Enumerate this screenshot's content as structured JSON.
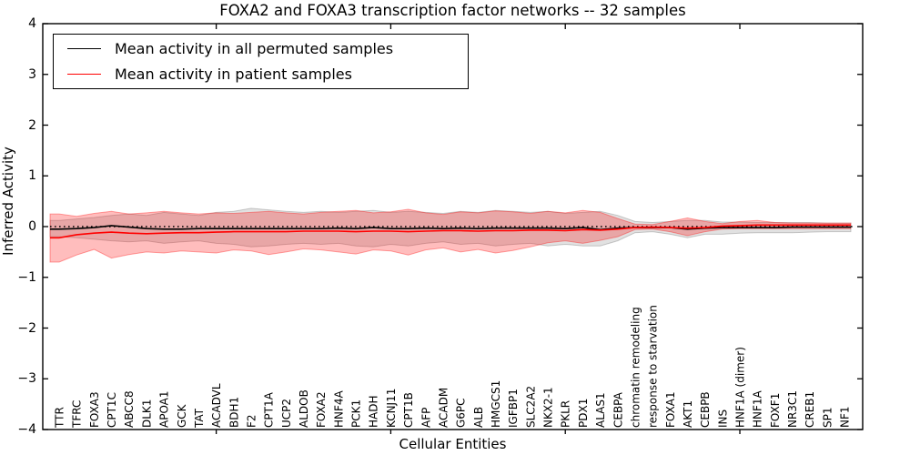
{
  "figure": {
    "title": "FOXA2 and FOXA3 transcription factor networks -- 32 samples"
  },
  "legend": {
    "items": [
      {
        "label": "Mean activity in all permuted samples",
        "color": "#000000"
      },
      {
        "label": "Mean activity in patient samples",
        "color": "#ff0000"
      }
    ]
  },
  "axes": {
    "xlabel": "Cellular Entities",
    "ylabel": "Inferred Activity",
    "y_ticks": [
      4,
      3,
      2,
      1,
      0,
      -1,
      -2,
      -3,
      -4
    ],
    "x_major_ticks": [
      10,
      20,
      30,
      40
    ],
    "ylim": [
      -4,
      4
    ]
  },
  "chart_data": {
    "type": "line",
    "title": "FOXA2 and FOXA3 transcription factor networks -- 32 samples",
    "xlabel": "Cellular Entities",
    "ylabel": "Inferred Activity",
    "ylim": [
      -4,
      4
    ],
    "grid": false,
    "legend_position": "upper left",
    "zero_reference_line": 0,
    "x_tick_label_rotation": 90,
    "categories": [
      "TTR",
      "TFRC",
      "FOXA3",
      "CPT1C",
      "ABCC8",
      "DLK1",
      "APOA1",
      "GCK",
      "TAT",
      "ACADVL",
      "BDH1",
      "F2",
      "CPT1A",
      "UCP2",
      "ALDOB",
      "FOXA2",
      "HNF4A",
      "PCK1",
      "HADH",
      "KCNJ11",
      "CPT1B",
      "AFP",
      "ACADM",
      "G6PC",
      "ALB",
      "HMGCS1",
      "IGFBP1",
      "SLC2A2",
      "NKX2-1",
      "PKLR",
      "PDX1",
      "ALAS1",
      "CEBPA",
      "chromatin remodeling",
      "response to starvation",
      "FOXA1",
      "AKT1",
      "CEBPB",
      "INS",
      "HNF1A (dimer)",
      "HNF1A",
      "FOXF1",
      "NR3C1",
      "CREB1",
      "SP1",
      "NF1"
    ],
    "series": [
      {
        "name": "Mean activity in all permuted samples",
        "role": "line",
        "color": "#000000",
        "values": [
          -0.05,
          -0.04,
          -0.02,
          0.02,
          -0.01,
          -0.04,
          -0.05,
          -0.05,
          -0.04,
          -0.04,
          -0.04,
          -0.04,
          -0.04,
          -0.04,
          -0.04,
          -0.04,
          -0.03,
          -0.04,
          -0.02,
          -0.04,
          -0.04,
          -0.03,
          -0.04,
          -0.03,
          -0.04,
          -0.03,
          -0.03,
          -0.03,
          -0.03,
          -0.04,
          -0.02,
          -0.06,
          -0.03,
          -0.02,
          -0.02,
          -0.02,
          -0.05,
          -0.03,
          -0.02,
          -0.02,
          -0.02,
          -0.02,
          -0.01,
          -0.01,
          -0.01,
          -0.01
        ]
      },
      {
        "name": "Mean activity in patient samples",
        "role": "line",
        "color": "#ff0000",
        "values": [
          -0.22,
          -0.16,
          -0.13,
          -0.11,
          -0.13,
          -0.14,
          -0.13,
          -0.12,
          -0.12,
          -0.11,
          -0.1,
          -0.1,
          -0.1,
          -0.1,
          -0.09,
          -0.09,
          -0.09,
          -0.1,
          -0.09,
          -0.09,
          -0.1,
          -0.09,
          -0.08,
          -0.08,
          -0.09,
          -0.08,
          -0.08,
          -0.07,
          -0.07,
          -0.08,
          -0.06,
          -0.07,
          -0.05,
          -0.02,
          -0.01,
          -0.02,
          -0.03,
          -0.02,
          0.01,
          0.02,
          0.03,
          0.03,
          0.03,
          0.03,
          0.03,
          0.03
        ]
      },
      {
        "name": "Permuted samples band upper (mean+std)",
        "role": "band-upper",
        "band": "permuted",
        "fill": "#0000001E",
        "values": [
          0.12,
          0.15,
          0.18,
          0.22,
          0.25,
          0.22,
          0.28,
          0.25,
          0.22,
          0.28,
          0.3,
          0.36,
          0.33,
          0.3,
          0.28,
          0.3,
          0.28,
          0.3,
          0.32,
          0.28,
          0.3,
          0.28,
          0.26,
          0.3,
          0.28,
          0.32,
          0.3,
          0.28,
          0.3,
          0.26,
          0.28,
          0.3,
          0.22,
          0.1,
          0.08,
          0.1,
          0.12,
          0.12,
          0.09,
          0.09,
          0.08,
          0.08,
          0.08,
          0.08,
          0.07,
          0.07
        ]
      },
      {
        "name": "Permuted samples band lower (mean-std)",
        "role": "band-lower",
        "band": "permuted",
        "fill": "#0000001E",
        "values": [
          -0.2,
          -0.22,
          -0.25,
          -0.28,
          -0.3,
          -0.28,
          -0.33,
          -0.3,
          -0.28,
          -0.33,
          -0.35,
          -0.4,
          -0.38,
          -0.35,
          -0.33,
          -0.35,
          -0.33,
          -0.38,
          -0.4,
          -0.35,
          -0.38,
          -0.33,
          -0.3,
          -0.35,
          -0.33,
          -0.38,
          -0.35,
          -0.33,
          -0.38,
          -0.35,
          -0.38,
          -0.38,
          -0.28,
          -0.12,
          -0.1,
          -0.15,
          -0.22,
          -0.15,
          -0.15,
          -0.13,
          -0.12,
          -0.12,
          -0.12,
          -0.11,
          -0.1,
          -0.1
        ]
      },
      {
        "name": "Patient samples band upper (mean+std)",
        "role": "band-upper",
        "band": "patient",
        "fill": "#FF000042",
        "values": [
          0.25,
          0.2,
          0.26,
          0.3,
          0.25,
          0.27,
          0.3,
          0.27,
          0.25,
          0.27,
          0.26,
          0.28,
          0.3,
          0.27,
          0.25,
          0.28,
          0.3,
          0.32,
          0.27,
          0.29,
          0.34,
          0.27,
          0.24,
          0.29,
          0.27,
          0.31,
          0.29,
          0.26,
          0.3,
          0.27,
          0.32,
          0.28,
          0.16,
          0.05,
          0.04,
          0.1,
          0.17,
          0.1,
          0.06,
          0.1,
          0.12,
          0.08,
          0.07,
          0.07,
          0.07,
          0.07
        ]
      },
      {
        "name": "Patient samples band lower (mean-std)",
        "role": "band-lower",
        "band": "patient",
        "fill": "#FF000042",
        "values": [
          -0.7,
          -0.56,
          -0.45,
          -0.62,
          -0.55,
          -0.5,
          -0.52,
          -0.48,
          -0.5,
          -0.52,
          -0.46,
          -0.48,
          -0.55,
          -0.5,
          -0.44,
          -0.46,
          -0.5,
          -0.54,
          -0.46,
          -0.48,
          -0.56,
          -0.46,
          -0.42,
          -0.5,
          -0.45,
          -0.52,
          -0.47,
          -0.4,
          -0.32,
          -0.28,
          -0.33,
          -0.27,
          -0.2,
          -0.06,
          -0.05,
          -0.1,
          -0.18,
          -0.1,
          -0.05,
          -0.04,
          -0.04,
          -0.04,
          -0.04,
          -0.04,
          -0.04,
          -0.04
        ]
      }
    ]
  }
}
